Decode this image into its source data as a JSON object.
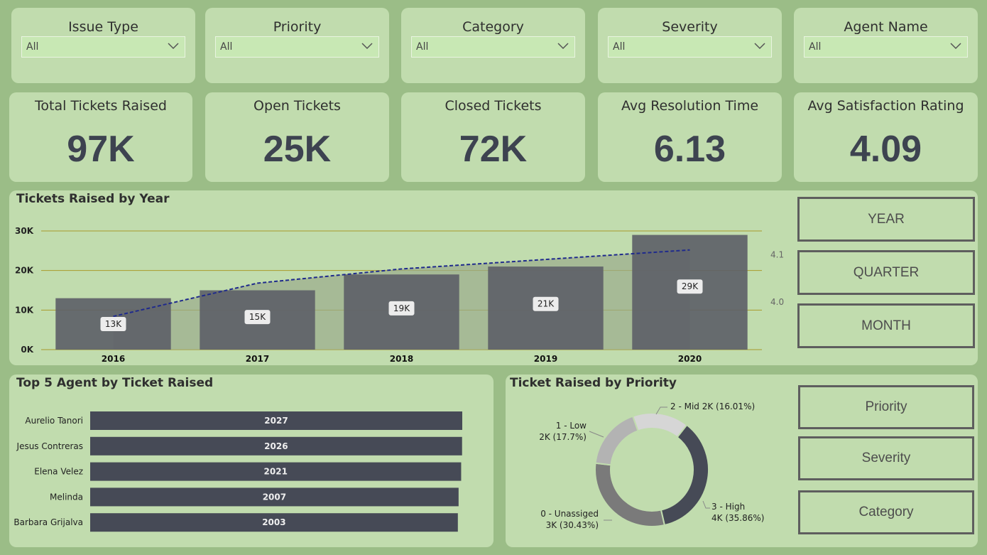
{
  "filters": [
    {
      "title": "Issue Type",
      "value": "All"
    },
    {
      "title": "Priority",
      "value": "All"
    },
    {
      "title": "Category",
      "value": "All"
    },
    {
      "title": "Severity",
      "value": "All"
    },
    {
      "title": "Agent Name",
      "value": "All"
    }
  ],
  "kpis": [
    {
      "title": "Total Tickets Raised",
      "value": "97K"
    },
    {
      "title": "Open Tickets",
      "value": "25K"
    },
    {
      "title": "Closed Tickets",
      "value": "72K"
    },
    {
      "title": "Avg Resolution Time",
      "value": "6.13"
    },
    {
      "title": "Avg Satisfaction Rating",
      "value": "4.09"
    }
  ],
  "year_chart": {
    "title": "Tickets Raised by Year",
    "buttons": [
      "YEAR",
      "QUARTER",
      "MONTH"
    ]
  },
  "agent_chart": {
    "title": "Top 5 Agent by Ticket Raised"
  },
  "priority_chart": {
    "title": "Ticket Raised by Priority",
    "buttons": [
      "Priority",
      "Severity",
      "Category"
    ]
  },
  "chart_data": [
    {
      "type": "bar",
      "title": "Tickets Raised by Year",
      "categories": [
        "2016",
        "2017",
        "2018",
        "2019",
        "2020"
      ],
      "series": [
        {
          "values": [
            13000,
            15000,
            19000,
            21000,
            29000
          ],
          "labels": [
            "13K",
            "15K",
            "19K",
            "21K",
            "29K"
          ],
          "color": "#5e6168"
        },
        {
          "values": [
            3.97,
            4.04,
            4.07,
            4.09,
            4.11
          ],
          "style": "dashed-line",
          "axis": "right",
          "color": "#1f2a8c"
        }
      ],
      "yticks": [
        "0K",
        "10K",
        "20K",
        "30K"
      ],
      "ylim": [
        0,
        30000
      ],
      "y2ticks": [
        "4.0",
        "4.1"
      ],
      "y2lim": [
        3.9,
        4.15
      ]
    },
    {
      "type": "bar",
      "orientation": "horizontal",
      "title": "Top 5 Agent by Ticket Raised",
      "categories": [
        "Aurelio Tanori",
        "Jesus Contreras",
        "Elena Velez",
        "Melinda",
        "Barbara Grijalva"
      ],
      "values": [
        2027,
        2026,
        2021,
        2007,
        2003
      ],
      "color": "#464a56"
    },
    {
      "type": "pie",
      "title": "Ticket Raised by Priority",
      "slices": [
        {
          "label": "3 - High",
          "value_label": "4K (35.86%)",
          "percent": 35.86,
          "color": "#464a56"
        },
        {
          "label": "0 - Unassiged",
          "value_label": "3K (30.43%)",
          "percent": 30.43,
          "color": "#7a7a7a"
        },
        {
          "label": "1 - Low",
          "value_label": "2K (17.7%)",
          "percent": 17.7,
          "color": "#b3b3b3"
        },
        {
          "label": "2 - Mid",
          "value_label": "2K (16.01%)",
          "percent": 16.01,
          "color": "#d6d6d6"
        }
      ]
    }
  ]
}
